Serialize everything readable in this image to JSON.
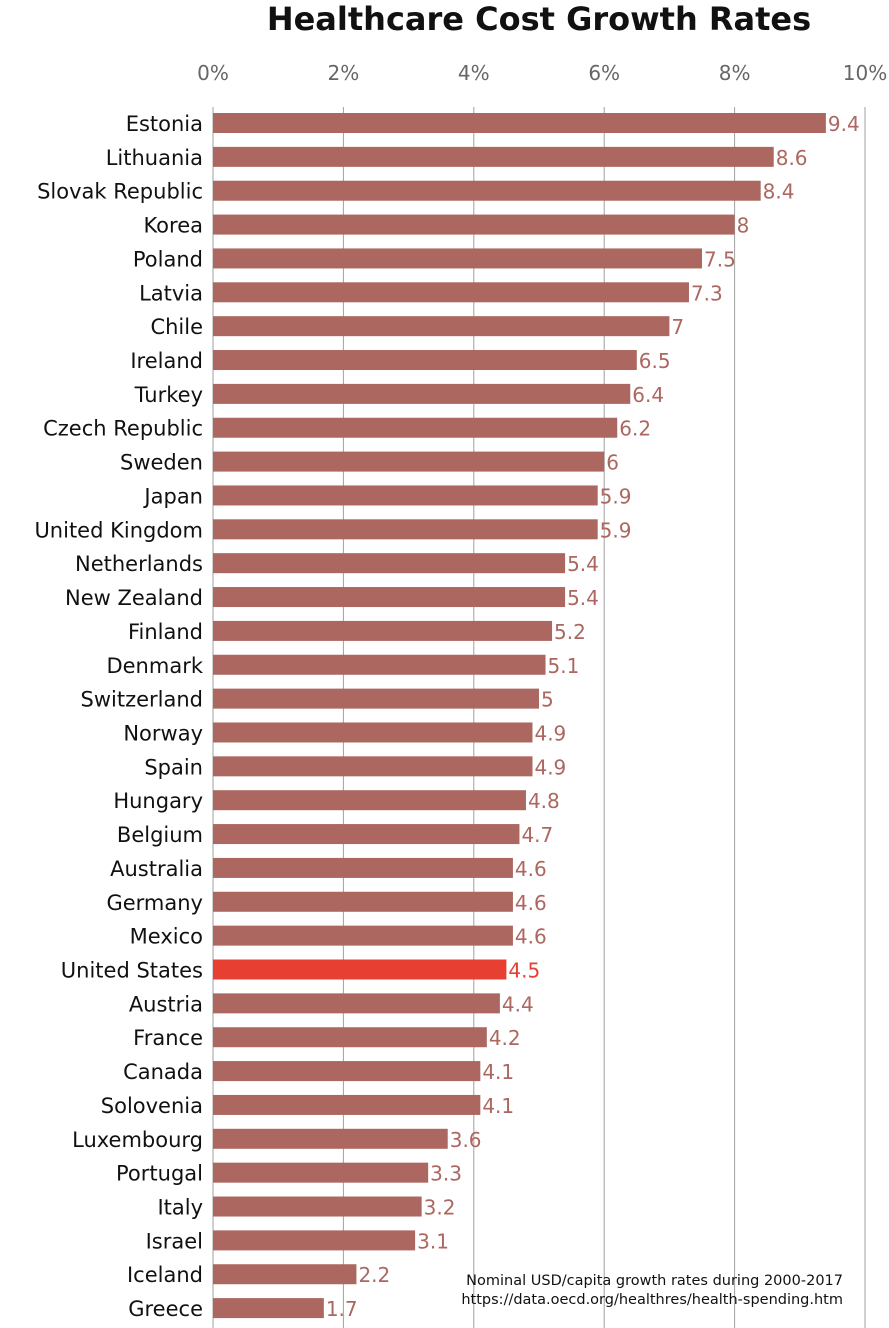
{
  "chart_data": {
    "type": "bar",
    "orientation": "horizontal",
    "title": "Healthcare Cost Growth Rates",
    "xlim": [
      0,
      10
    ],
    "x_ticks": [
      "0%",
      "2%",
      "4%",
      "6%",
      "8%",
      "10%"
    ],
    "x_tick_values": [
      0,
      2,
      4,
      6,
      8,
      10
    ],
    "grid": true,
    "categories": [
      "Estonia",
      "Lithuania",
      "Slovak Republic",
      "Korea",
      "Poland",
      "Latvia",
      "Chile",
      "Ireland",
      "Turkey",
      "Czech Republic",
      "Sweden",
      "Japan",
      "United Kingdom",
      "Netherlands",
      "New Zealand",
      "Finland",
      "Denmark",
      "Switzerland",
      "Norway",
      "Spain",
      "Hungary",
      "Belgium",
      "Australia",
      "Germany",
      "Mexico",
      "United States",
      "Austria",
      "France",
      "Canada",
      "Solovenia",
      "Luxembourg",
      "Portugal",
      "Italy",
      "Israel",
      "Iceland",
      "Greece"
    ],
    "values": [
      9.4,
      8.6,
      8.4,
      8,
      7.5,
      7.3,
      7,
      6.5,
      6.4,
      6.2,
      6,
      5.9,
      5.9,
      5.4,
      5.4,
      5.2,
      5.1,
      5,
      4.9,
      4.9,
      4.8,
      4.7,
      4.6,
      4.6,
      4.6,
      4.5,
      4.4,
      4.2,
      4.1,
      4.1,
      3.6,
      3.3,
      3.2,
      3.1,
      2.2,
      1.7
    ],
    "highlight_category": "United States",
    "colors": {
      "bar": "#ac6760",
      "highlight": "#e83f33",
      "grid": "#a0a0a0"
    },
    "annotations": [
      "Nominal USD/capita growth rates during 2000-2017",
      "https://data.oecd.org/healthres/health-spending.htm"
    ]
  }
}
